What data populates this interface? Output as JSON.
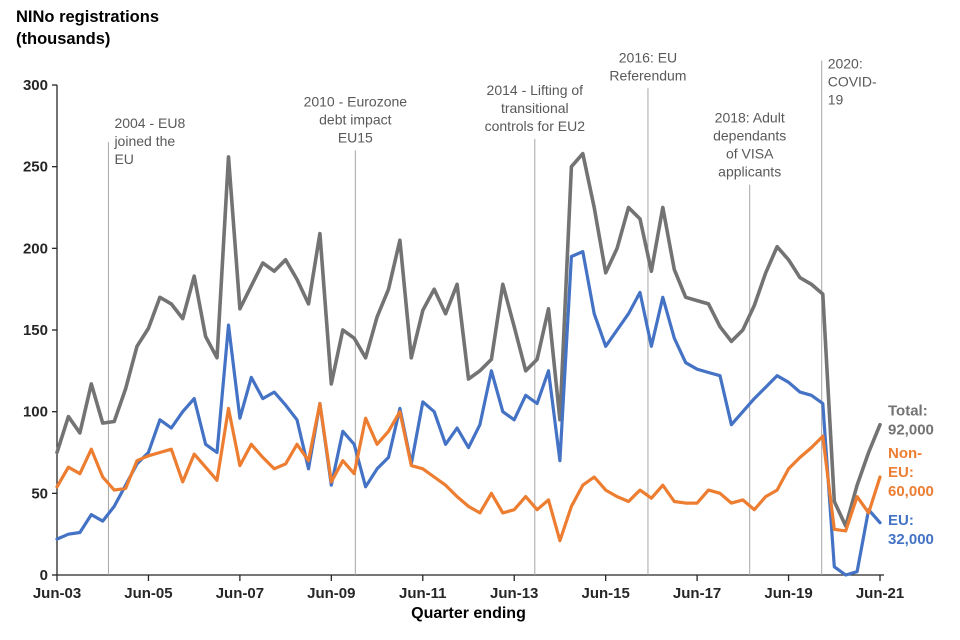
{
  "chart_data": {
    "type": "line",
    "title": "NINo registrations (thousands)",
    "xlabel": "Quarter ending",
    "ylabel": "NINo registrations (thousands)",
    "ylim": [
      0,
      300
    ],
    "y_ticks": [
      0,
      50,
      100,
      150,
      200,
      250,
      300
    ],
    "x_frequency": "quarterly",
    "x_range": [
      "Jun-03",
      "Jun-21"
    ],
    "x_tick_labels": [
      "Jun-03",
      "Jun-05",
      "Jun-07",
      "Jun-09",
      "Jun-11",
      "Jun-13",
      "Jun-15",
      "Jun-17",
      "Jun-19",
      "Jun-21"
    ],
    "grid": false,
    "legend_position": "right-end-labels",
    "series": [
      {
        "name": "Total",
        "color": "#737373",
        "end_label_lines": [
          "Total:",
          "92,000"
        ],
        "end_label_anchor": 95,
        "end_value": 92,
        "values": [
          75,
          97,
          87,
          117,
          93,
          94,
          114,
          140,
          151,
          170,
          166,
          157,
          183,
          146,
          133,
          256,
          163,
          177,
          191,
          186,
          193,
          181,
          166,
          209,
          117,
          150,
          145,
          133,
          158,
          175,
          205,
          133,
          162,
          175,
          160,
          178,
          120,
          125,
          132,
          178,
          152,
          125,
          132,
          163,
          95,
          250,
          258,
          225,
          185,
          200,
          225,
          218,
          186,
          225,
          187,
          170,
          168,
          166,
          152,
          143,
          150,
          165,
          185,
          201,
          193,
          182,
          178,
          172,
          45,
          30,
          55,
          75,
          92
        ]
      },
      {
        "name": "EU",
        "color": "#4472C4",
        "end_label_lines": [
          "EU:",
          "32,000"
        ],
        "end_label_anchor": 28,
        "end_value": 32,
        "values": [
          22,
          25,
          26,
          37,
          33,
          42,
          55,
          68,
          75,
          95,
          90,
          100,
          108,
          80,
          75,
          153,
          96,
          121,
          108,
          112,
          104,
          95,
          65,
          105,
          55,
          88,
          80,
          54,
          65,
          72,
          102,
          68,
          106,
          100,
          80,
          90,
          78,
          92,
          125,
          100,
          95,
          110,
          105,
          125,
          70,
          195,
          198,
          160,
          140,
          150,
          160,
          173,
          140,
          170,
          145,
          130,
          126,
          124,
          122,
          92,
          100,
          108,
          115,
          122,
          118,
          112,
          110,
          105,
          5,
          0,
          2,
          40,
          32
        ]
      },
      {
        "name": "Non-EU",
        "color": "#ED7D31",
        "end_label_lines": [
          "Non-",
          "EU:",
          "60,000"
        ],
        "end_label_anchor": 63,
        "end_value": 60,
        "values": [
          54,
          66,
          62,
          77,
          60,
          52,
          53,
          70,
          73,
          75,
          77,
          57,
          74,
          66,
          58,
          102,
          67,
          80,
          72,
          65,
          68,
          80,
          70,
          105,
          57,
          70,
          62,
          96,
          80,
          88,
          100,
          67,
          65,
          60,
          55,
          48,
          42,
          38,
          50,
          38,
          40,
          48,
          40,
          46,
          21,
          42,
          55,
          60,
          52,
          48,
          45,
          52,
          47,
          55,
          45,
          44,
          44,
          52,
          50,
          44,
          46,
          40,
          48,
          52,
          65,
          72,
          78,
          85,
          28,
          27,
          48,
          38,
          60
        ]
      }
    ],
    "annotations": [
      {
        "id": "2004",
        "label_lines": [
          "2004 - EU8",
          "joined the",
          "EU"
        ],
        "x_index": 4.5,
        "line_top_value": 265,
        "align": "left",
        "text_dy": -14
      },
      {
        "id": "2010",
        "label_lines": [
          "2010 - Eurozone",
          "debt impact",
          "EU15"
        ],
        "x_index": 26.1,
        "line_top_value": 260,
        "align": "center"
      },
      {
        "id": "2014",
        "label_lines": [
          "2014 - Lifting of",
          "transitional",
          "controls for EU2"
        ],
        "x_index": 41.8,
        "line_top_value": 267,
        "align": "center"
      },
      {
        "id": "2016",
        "label_lines": [
          "2016: EU",
          "Referendum"
        ],
        "x_index": 51.7,
        "line_top_value": 298,
        "align": "center"
      },
      {
        "id": "2018",
        "label_lines": [
          "2018: Adult",
          "dependants",
          "of VISA",
          "applicants"
        ],
        "x_index": 60.6,
        "line_top_value": 239,
        "align": "center"
      },
      {
        "id": "2020",
        "label_lines": [
          "2020:",
          "COVID-",
          "19"
        ],
        "x_index": 66.9,
        "line_top_value": 315,
        "align": "left",
        "text_dy": 8
      }
    ],
    "colors": {
      "axis": "#262626",
      "annotation_line": "#a6a6a6",
      "annotation_text": "#595959"
    }
  }
}
